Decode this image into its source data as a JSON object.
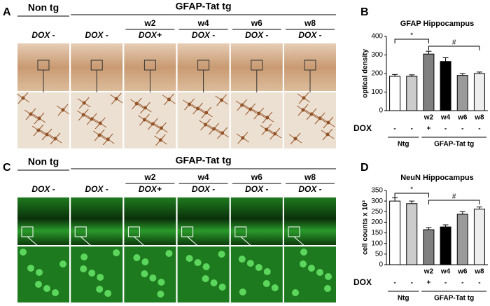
{
  "figure": {
    "panel_a": {
      "label": "A",
      "left_title": "Non tg",
      "right_title": "GFAP-Tat tg",
      "columns": [
        {
          "dox": "DOX -"
        },
        {
          "dox": "DOX -"
        },
        {
          "week": "w2",
          "dox": "DOX+"
        },
        {
          "week": "w4",
          "dox": "DOX -"
        },
        {
          "week": "w6",
          "dox": "DOX -"
        },
        {
          "week": "w8",
          "dox": "DOX -"
        }
      ]
    },
    "panel_c": {
      "label": "C",
      "left_title": "Non tg",
      "right_title": "GFAP-Tat tg",
      "columns": [
        {
          "dox": "DOX -"
        },
        {
          "dox": "DOX -"
        },
        {
          "week": "w2",
          "dox": "DOX+"
        },
        {
          "week": "w4",
          "dox": "DOX -"
        },
        {
          "week": "w6",
          "dox": "DOX -"
        },
        {
          "week": "w8",
          "dox": "DOX -"
        }
      ]
    },
    "panel_b_label": "B",
    "panel_d_label": "D"
  },
  "chart_data": [
    {
      "type": "bar",
      "title": "GFAP Hippocampus",
      "y_label": "optical density",
      "categories": [
        null,
        null,
        "w2",
        "w4",
        "w6",
        "w8"
      ],
      "values": [
        185,
        185,
        305,
        265,
        190,
        200
      ],
      "errors": [
        10,
        8,
        15,
        20,
        10,
        8
      ],
      "colors": [
        "#ffffff",
        "#cccccc",
        "#808080",
        "#000000",
        "#9a9a9a",
        "#eeeeee"
      ],
      "ylim": [
        0,
        400
      ],
      "yticks": [
        0,
        100,
        200,
        300,
        400
      ],
      "dox_label": "DOX",
      "dox": [
        "-",
        "-",
        "+",
        "-",
        "-",
        "-"
      ],
      "groups": [
        "Ntg",
        "GFAP-Tat tg"
      ],
      "annotations": [
        "*",
        "#"
      ]
    },
    {
      "type": "bar",
      "title": "NeuN Hippocampus",
      "y_label": "cell counts x 10³",
      "categories": [
        null,
        null,
        "w2",
        "w4",
        "w6",
        "w8"
      ],
      "values": [
        300,
        288,
        165,
        178,
        238,
        262
      ],
      "errors": [
        15,
        12,
        10,
        10,
        12,
        10
      ],
      "colors": [
        "#ffffff",
        "#cccccc",
        "#808080",
        "#000000",
        "#9a9a9a",
        "#eeeeee"
      ],
      "ylim": [
        0,
        350
      ],
      "yticks": [
        0,
        50,
        100,
        150,
        200,
        250,
        300,
        350
      ],
      "dox_label": "DOX",
      "dox": [
        "-",
        "-",
        "+",
        "-",
        "-",
        "-"
      ],
      "groups": [
        "Ntg",
        "GFAP-Tat tg"
      ],
      "annotations": [
        "*",
        "#"
      ]
    }
  ]
}
